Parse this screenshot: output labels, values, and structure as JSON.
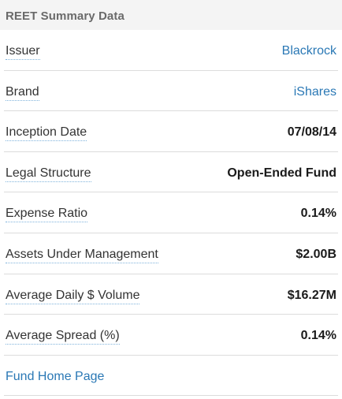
{
  "header": {
    "title": "REET Summary Data"
  },
  "rows": [
    {
      "label": "Issuer",
      "value": "Blackrock"
    },
    {
      "label": "Brand",
      "value": "iShares"
    },
    {
      "label": "Inception Date",
      "value": "07/08/14"
    },
    {
      "label": "Legal Structure",
      "value": "Open-Ended Fund"
    },
    {
      "label": "Expense Ratio",
      "value": "0.14%"
    },
    {
      "label": "Assets Under Management",
      "value": "$2.00B"
    },
    {
      "label": "Average Daily $ Volume",
      "value": "$16.27M"
    },
    {
      "label": "Average Spread (%)",
      "value": "0.14%"
    }
  ],
  "footer": {
    "link_label": "Fund Home Page"
  }
}
